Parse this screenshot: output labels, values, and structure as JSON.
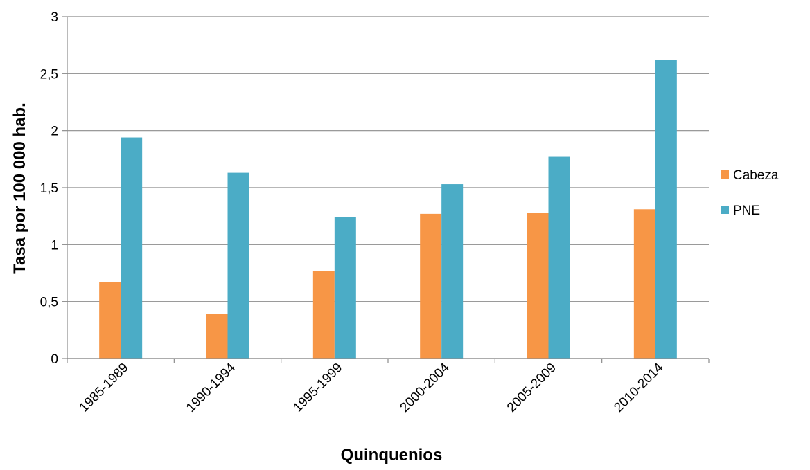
{
  "chart_data": {
    "type": "bar",
    "title": "",
    "xlabel": "Quinquenios",
    "ylabel": "Tasa por 100 000 hab.",
    "categories": [
      "1985-1989",
      "1990-1994",
      "1995-1999",
      "2000-2004",
      "2005-2009",
      "2010-2014"
    ],
    "series": [
      {
        "name": "Cabeza",
        "color": "#F79646",
        "values": [
          0.67,
          0.39,
          0.77,
          1.27,
          1.28,
          1.31
        ]
      },
      {
        "name": "PNE",
        "color": "#4BACC6",
        "values": [
          1.94,
          1.63,
          1.24,
          1.53,
          1.77,
          2.62
        ]
      }
    ],
    "ylim": [
      0,
      3
    ],
    "yticks": [
      "0",
      "0,5",
      "1",
      "1,5",
      "2",
      "2,5",
      "3"
    ],
    "ytick_values": [
      0,
      0.5,
      1,
      1.5,
      2,
      2.5,
      3
    ],
    "grid": true,
    "legend": "right"
  }
}
